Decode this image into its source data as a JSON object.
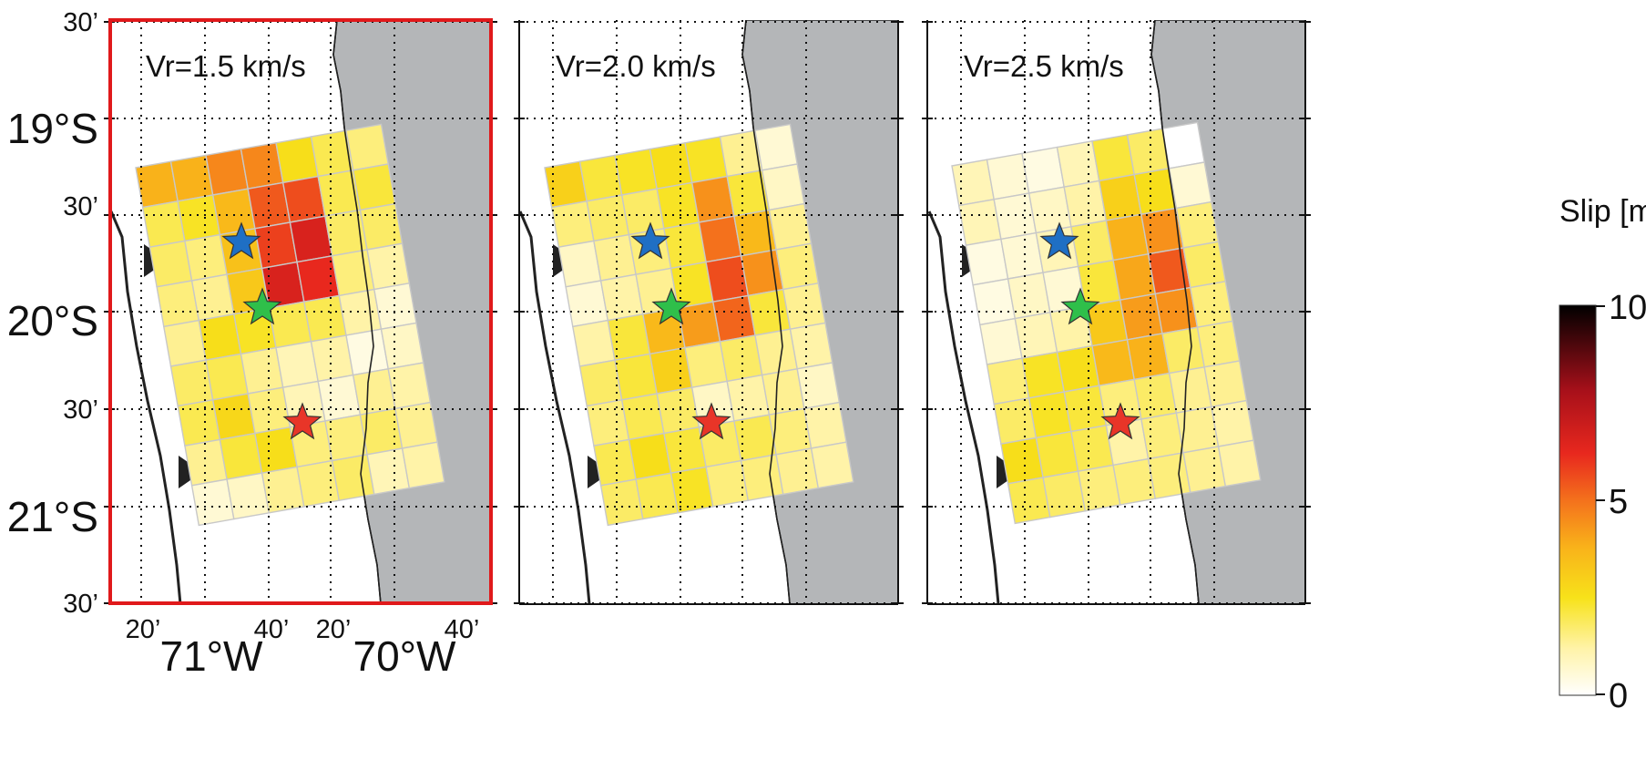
{
  "figure": {
    "panels": [
      {
        "id": "vr15",
        "label": "Vr=1.5 km/s",
        "highlighted": true
      },
      {
        "id": "vr20",
        "label": "Vr=2.0 km/s",
        "highlighted": false
      },
      {
        "id": "vr25",
        "label": "Vr=2.5 km/s",
        "highlighted": false
      }
    ],
    "lat_labels": [
      {
        "text": "30’",
        "big": false
      },
      {
        "text": "19°S",
        "big": true
      },
      {
        "text": "30’",
        "big": false
      },
      {
        "text": "20°S",
        "big": true
      },
      {
        "text": "30’",
        "big": false
      },
      {
        "text": "21°S",
        "big": true
      },
      {
        "text": "30’",
        "big": false
      }
    ],
    "lon_labels": [
      {
        "text": "20’",
        "big": false
      },
      {
        "text": "71°W",
        "big": true
      },
      {
        "text": "40’",
        "big": false
      },
      {
        "text": "20’",
        "big": false
      },
      {
        "text": "70°W",
        "big": true
      },
      {
        "text": "40’",
        "big": false
      }
    ],
    "colorbar": {
      "title": "Slip [m]",
      "min": 0,
      "max": 10,
      "ticks": [
        "10",
        "5",
        "0"
      ]
    },
    "stars": [
      {
        "name": "blue-star",
        "color": "#1f6fc4"
      },
      {
        "name": "green-star",
        "color": "#2fbf4a"
      },
      {
        "name": "red-star",
        "color": "#e83528"
      }
    ],
    "colors": {
      "land": "#b4b6b8",
      "highlight_frame": "#e0191b",
      "grid": "#111111",
      "cell_border": "#c8c8c8"
    }
  }
}
